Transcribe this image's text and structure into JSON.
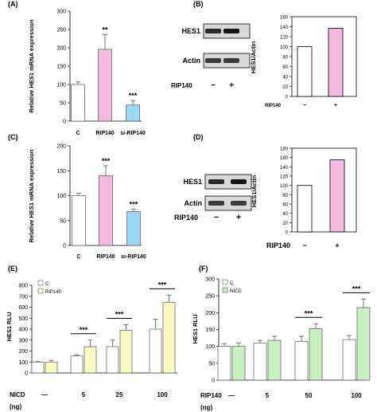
{
  "colors": {
    "white": "#ffffff",
    "pink": "#f4b8e0",
    "pink_dark": "#d8a0c8",
    "cyan": "#99d8f5",
    "yellow": "#fdfac6",
    "green": "#c8f0c0",
    "magenta_bar": "#f4b8e0",
    "outline": "#000000",
    "err": "#707070"
  },
  "chart_data": [
    {
      "id": "A",
      "panel_label": "(A)",
      "type": "bar",
      "ylabel": "Relative HES1 mRNA expression",
      "ylim": [
        0,
        300
      ],
      "yticks": [
        0,
        50,
        100,
        150,
        200,
        250,
        300
      ],
      "categories": [
        "C",
        "RIP140",
        "si-RIP140"
      ],
      "values": [
        100,
        196,
        44
      ],
      "errors": [
        7,
        40,
        12
      ],
      "colors": [
        "#ffffff",
        "#f4b8e0",
        "#99d8f5"
      ],
      "annotations": [
        "",
        "**",
        "***"
      ]
    },
    {
      "id": "B",
      "panel_label": "(B)",
      "type": "bar",
      "ylabel": "HES1/Actin",
      "ylim": [
        0,
        160
      ],
      "yticks": [
        0,
        20,
        40,
        60,
        80,
        100,
        120,
        140,
        160
      ],
      "categories": [
        "−",
        "+"
      ],
      "category_axis_label": "RIP140",
      "values": [
        100,
        137
      ],
      "colors": [
        "#ffffff",
        "#f4b8e0"
      ],
      "blot": {
        "rows": [
          "HES1",
          "Actin"
        ],
        "condition_label": "RIP140",
        "lanes": [
          "−",
          "+"
        ]
      }
    },
    {
      "id": "C",
      "panel_label": "(C)",
      "type": "bar",
      "ylabel": "Relative HES1 mRNA expression",
      "ylim": [
        0,
        200
      ],
      "yticks": [
        0,
        50,
        100,
        150,
        200
      ],
      "categories": [
        "C",
        "RIP140",
        "si-RIP140"
      ],
      "values": [
        100,
        140,
        68
      ],
      "errors": [
        5,
        20,
        5
      ],
      "colors": [
        "#ffffff",
        "#f4b8e0",
        "#99d8f5"
      ],
      "annotations": [
        "",
        "***",
        "***"
      ]
    },
    {
      "id": "D",
      "panel_label": "(D)",
      "type": "bar",
      "ylabel": "HES1/Actin",
      "ylim": [
        0,
        180
      ],
      "yticks": [
        0,
        20,
        40,
        60,
        80,
        100,
        120,
        140,
        160,
        180
      ],
      "categories": [
        "−",
        "+"
      ],
      "category_axis_label": "RIP140",
      "values": [
        100,
        155
      ],
      "colors": [
        "#ffffff",
        "#f4b8e0"
      ],
      "blot": {
        "rows": [
          "HES1",
          "Actin"
        ],
        "condition_label": "RIP140",
        "lanes": [
          "−",
          "+"
        ]
      }
    },
    {
      "id": "E",
      "panel_label": "(E)",
      "type": "bar",
      "ylabel": "HES1 RLU",
      "ylim": [
        0,
        800
      ],
      "yticks": [
        0,
        100,
        200,
        300,
        400,
        500,
        600,
        700,
        800
      ],
      "x_label_line1": "NICD",
      "x_label_line2": "(ng)",
      "categories": [
        "—",
        "5",
        "25",
        "100"
      ],
      "series": [
        {
          "name": "C",
          "color": "#ffffff",
          "values": [
            100,
            155,
            240,
            400
          ],
          "errors": [
            5,
            10,
            60,
            90
          ]
        },
        {
          "name": "RIP140",
          "color": "#fdfac6",
          "values": [
            100,
            240,
            390,
            645
          ],
          "errors": [
            15,
            60,
            50,
            65
          ]
        }
      ],
      "significance": [
        "",
        "***",
        "***",
        "***"
      ]
    },
    {
      "id": "F",
      "panel_label": "(F)",
      "type": "bar",
      "ylabel": "HES1 RLU",
      "ylim": [
        0,
        300
      ],
      "yticks": [
        0,
        50,
        100,
        150,
        200,
        250,
        300
      ],
      "x_label_line1": "RIP140",
      "x_label_line2": "(ng)",
      "categories": [
        "—",
        "5",
        "50",
        "100"
      ],
      "series": [
        {
          "name": "C",
          "color": "#ffffff",
          "values": [
            100,
            110,
            115,
            120
          ],
          "errors": [
            8,
            8,
            15,
            12
          ]
        },
        {
          "name": "NICD",
          "color": "#c8f0c0",
          "values": [
            100,
            118,
            152,
            215
          ],
          "errors": [
            10,
            12,
            15,
            25
          ]
        }
      ],
      "significance": [
        "",
        "",
        "***",
        "***"
      ]
    }
  ]
}
